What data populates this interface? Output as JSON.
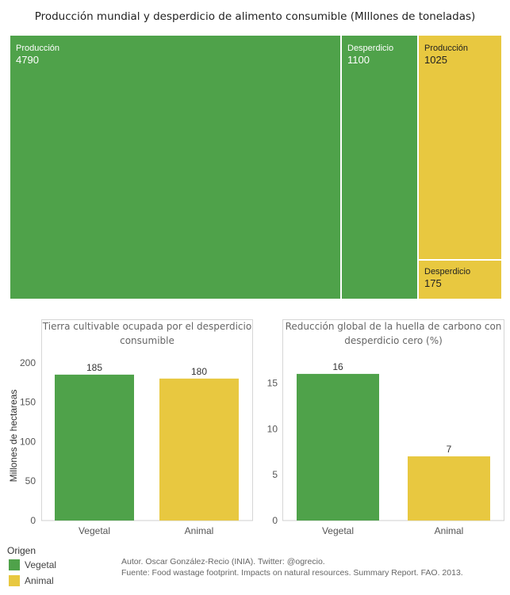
{
  "colors": {
    "vegetal": "#4fa24a",
    "animal": "#e8c840",
    "axis": "#d6d6d6",
    "text": "#333333"
  },
  "chart_data": [
    {
      "type": "treemap",
      "title": "Producción mundial y desperdicio de alimento consumible (MIllones de toneladas)",
      "tiles": [
        {
          "label": "Producción",
          "value": 4790,
          "origen": "Vegetal"
        },
        {
          "label": "Desperdicio",
          "value": 1100,
          "origen": "Vegetal"
        },
        {
          "label": "Producción",
          "value": 1025,
          "origen": "Animal"
        },
        {
          "label": "Desperdicio",
          "value": 175,
          "origen": "Animal"
        }
      ]
    },
    {
      "type": "bar",
      "title": "Tierra cultivable ocupada por el desperdicio consumible",
      "categories": [
        "Vegetal",
        "Animal"
      ],
      "values": [
        185,
        180
      ],
      "ylabel": "Millones de hectareas",
      "ylim": [
        0,
        215
      ],
      "yticks": [
        0,
        50,
        100,
        150,
        200
      ]
    },
    {
      "type": "bar",
      "title": "Reducción global de la huella de carbono con desperdicio cero (%)",
      "categories": [
        "Vegetal",
        "Animal"
      ],
      "values": [
        16,
        7
      ],
      "ylabel": "",
      "ylim": [
        0,
        18.5
      ],
      "yticks": [
        0,
        5,
        10,
        15
      ]
    }
  ],
  "legend": {
    "title": "Origen",
    "items": [
      "Vegetal",
      "Animal"
    ]
  },
  "credits": {
    "author": "Autor. Oscar González-Recio (INIA). Twitter: @ogrecio.",
    "source": "Fuente: Food wastage footprint. Impacts on natural resources. Summary Report. FAO. 2013."
  }
}
